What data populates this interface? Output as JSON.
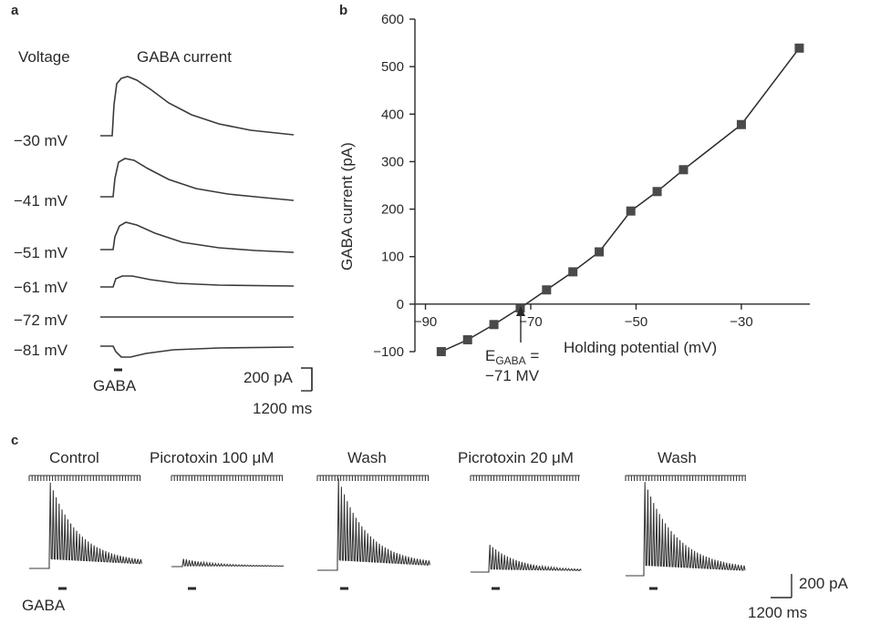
{
  "panels": {
    "a": "a",
    "b": "b",
    "c": "c"
  },
  "panel_a": {
    "header_voltage": "Voltage",
    "header_current": "GABA current",
    "voltages": [
      "−30 mV",
      "−41 mV",
      "−51 mV",
      "−61 mV",
      "−72 mV",
      "−81 mV"
    ],
    "gaba_label": "GABA",
    "scale_current": "200 pA",
    "scale_time": "1200 ms"
  },
  "chart_data": {
    "type": "line",
    "xlabel": "Holding potential (mV)",
    "ylabel": "GABA current (pA)",
    "xlim": [
      -92,
      -17
    ],
    "ylim": [
      -100,
      600
    ],
    "xticks": [
      -90,
      -70,
      -50,
      -30
    ],
    "xtick_labels": [
      "−90",
      "−70",
      "−50",
      "−30"
    ],
    "yticks": [
      600,
      500,
      400,
      300,
      200,
      100,
      0,
      -100
    ],
    "ytick_labels": [
      "600",
      "500",
      "400",
      "300",
      "200",
      "100",
      "0",
      "−100"
    ],
    "x": [
      -87,
      -82,
      -77,
      -72,
      -67,
      -62,
      -57,
      -51,
      -46,
      -41,
      -30,
      -19
    ],
    "y": [
      -100,
      -75,
      -43,
      -8,
      30,
      68,
      110,
      196,
      237,
      283,
      378,
      539
    ],
    "annotation_line1": "EGABA =",
    "annotation_sub": "GABA",
    "annotation_main": "E",
    "annotation_eq": " =",
    "annotation_line2": "−71 MV"
  },
  "panel_c": {
    "conditions": [
      "Control",
      "Picrotoxin 100 μM",
      "Wash",
      "Picrotoxin 20 μM",
      "Wash"
    ],
    "gaba_label": "GABA",
    "scale_current": "200 pA",
    "scale_time": "1200 ms"
  }
}
